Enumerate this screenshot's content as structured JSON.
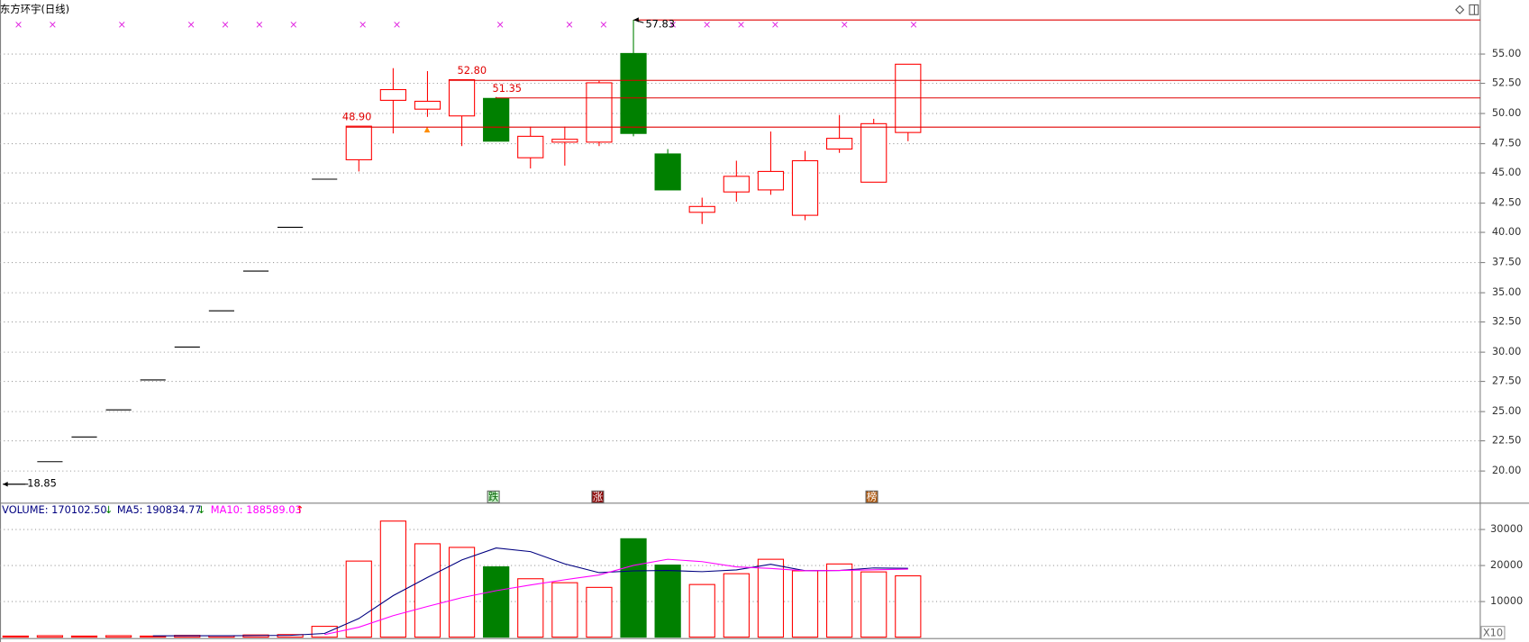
{
  "chart_data": [
    {
      "type": "candlestick",
      "title": "东方环宇(日线)",
      "open": [
        18.85,
        20.74,
        22.81,
        25.09,
        27.6,
        30.36,
        33.4,
        36.74,
        40.41,
        44.45,
        46.08,
        51.07,
        50.33,
        49.76,
        51.23,
        46.25,
        47.56,
        47.56,
        55.0,
        46.57,
        41.67,
        43.38,
        43.55,
        41.42,
        46.98,
        44.2,
        48.37
      ],
      "high": [
        18.85,
        20.74,
        22.81,
        25.09,
        27.6,
        30.36,
        33.4,
        36.74,
        40.41,
        44.45,
        48.9,
        53.77,
        53.52,
        52.8,
        51.35,
        48.86,
        48.86,
        52.7,
        57.83,
        46.98,
        42.9,
        46.0,
        48.45,
        46.82,
        49.84,
        49.52,
        54.1
      ],
      "low": [
        18.85,
        20.74,
        22.81,
        25.09,
        27.6,
        30.36,
        33.4,
        36.74,
        40.41,
        44.45,
        45.1,
        48.29,
        49.68,
        47.23,
        47.64,
        45.35,
        45.59,
        47.23,
        48.05,
        43.55,
        40.69,
        42.57,
        43.14,
        41.01,
        46.66,
        44.2,
        47.64
      ],
      "close": [
        18.85,
        20.74,
        22.81,
        25.09,
        27.6,
        30.36,
        33.4,
        36.74,
        40.41,
        44.45,
        48.9,
        51.97,
        50.99,
        52.8,
        47.64,
        48.05,
        47.8,
        52.54,
        48.29,
        43.55,
        42.16,
        44.69,
        45.1,
        46.0,
        47.88,
        49.11,
        54.1
      ],
      "up_color": "#ff0000",
      "down_color": "#008000",
      "flat_color": "#000000",
      "ylim": [
        17.38,
        59.49
      ],
      "yticks": [
        {
          "value": 20,
          "label": "20.00"
        },
        {
          "value": 22.5,
          "label": "22.50"
        },
        {
          "value": 25,
          "label": "25.00"
        },
        {
          "value": 27.5,
          "label": "27.50"
        },
        {
          "value": 30,
          "label": "30.00"
        },
        {
          "value": 32.5,
          "label": "32.50"
        },
        {
          "value": 35,
          "label": "35.00"
        },
        {
          "value": 37.5,
          "label": "37.50"
        },
        {
          "value": 40,
          "label": "40.00"
        },
        {
          "value": 42.5,
          "label": "42.50"
        },
        {
          "value": 45,
          "label": "45.00"
        },
        {
          "value": 47.5,
          "label": "47.50"
        },
        {
          "value": 50,
          "label": "50.00"
        },
        {
          "value": 52.5,
          "label": "52.50"
        },
        {
          "value": 55,
          "label": "55.00"
        }
      ],
      "grid": true,
      "annotations": [
        {
          "value": 18.85,
          "label": "18.85"
        },
        {
          "value": 48.9,
          "label": "48.90"
        },
        {
          "value": 52.8,
          "label": "52.80"
        },
        {
          "value": 51.35,
          "label": "51.35"
        },
        {
          "value": 57.83,
          "label": "57.83"
        }
      ],
      "event_markers": [
        "跌",
        "涨",
        "榜"
      ]
    },
    {
      "type": "volume",
      "values": [
        300,
        400,
        300,
        400,
        300,
        500,
        400,
        600,
        700,
        3000,
        21100,
        32200,
        25900,
        24900,
        19500,
        16200,
        15100,
        13800,
        27300,
        20000,
        14600,
        17600,
        21600,
        18400,
        20300,
        18100,
        17010.25
      ],
      "series": [
        {
          "name": "MA5",
          "color": "#000080",
          "values": [
            null,
            null,
            null,
            null,
            340,
            380,
            380,
            440,
            500,
            1040,
            5160,
            11520,
            16580,
            21420,
            24720,
            23740,
            20320,
            17900,
            18380,
            18480,
            18160,
            18660,
            20220,
            18440,
            18500,
            19200,
            19083.48
          ]
        },
        {
          "name": "MA10",
          "color": "#ff00ff",
          "values": [
            null,
            null,
            null,
            null,
            null,
            null,
            null,
            null,
            null,
            690,
            2770,
            5950,
            8510,
            10960,
            12880,
            14450,
            15920,
            17240,
            19900,
            21600,
            20950,
            19490,
            19060,
            18410,
            18490,
            18680,
            18858.9
          ]
        }
      ],
      "legend": [
        {
          "label": "VOLUME: 170102.50",
          "arrow": "↓",
          "color": "#000080",
          "arrow_color": "#008000"
        },
        {
          "label": "MA5: 190834.77",
          "arrow": "↓",
          "color": "#000080",
          "arrow_color": "#008000"
        },
        {
          "label": "MA10: 188589.03",
          "arrow": "↑",
          "color": "#ff00ff",
          "arrow_color": "#ff0000"
        }
      ],
      "ylim": [
        0,
        36760
      ],
      "yticks": [
        10000,
        20000,
        30000
      ],
      "grid": true,
      "unit_label": "X10"
    }
  ]
}
